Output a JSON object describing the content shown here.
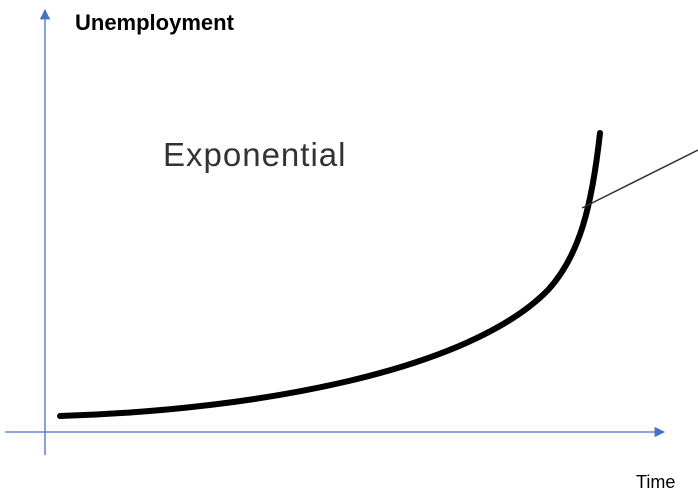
{
  "y_axis": {
    "label": "Unemployment"
  },
  "x_axis": {
    "label": "Time"
  },
  "curve": {
    "label": "Exponential"
  }
}
